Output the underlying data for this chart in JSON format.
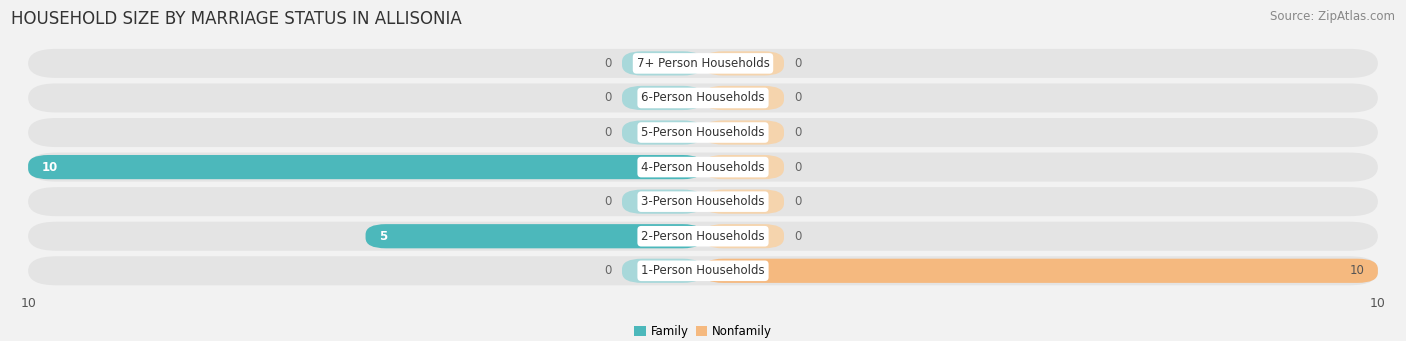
{
  "title": "HOUSEHOLD SIZE BY MARRIAGE STATUS IN ALLISONIA",
  "source": "Source: ZipAtlas.com",
  "categories": [
    "7+ Person Households",
    "6-Person Households",
    "5-Person Households",
    "4-Person Households",
    "3-Person Households",
    "2-Person Households",
    "1-Person Households"
  ],
  "family_values": [
    0,
    0,
    0,
    10,
    0,
    5,
    0
  ],
  "nonfamily_values": [
    0,
    0,
    0,
    0,
    0,
    0,
    10
  ],
  "family_color": "#4cb8bb",
  "nonfamily_color": "#f5b97f",
  "family_stub_color": "#a8d8da",
  "nonfamily_stub_color": "#f5d4ad",
  "xlim": [
    -10,
    10
  ],
  "background_color": "#f2f2f2",
  "bar_bg_color": "#e4e4e4",
  "title_fontsize": 12,
  "label_fontsize": 8.5,
  "tick_fontsize": 9,
  "source_fontsize": 8.5,
  "stub_size": 1.2
}
